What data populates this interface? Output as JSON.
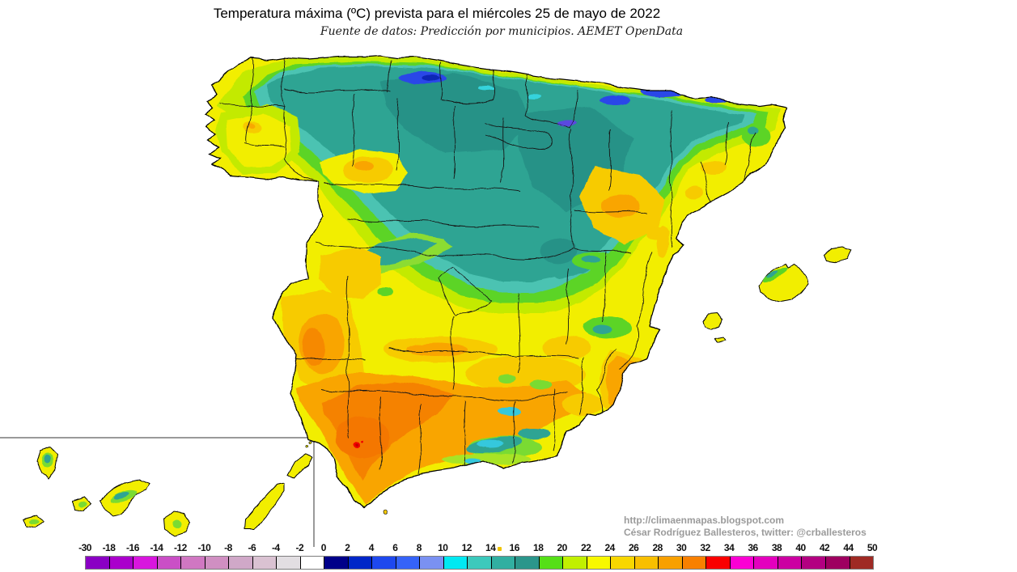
{
  "title": "Temperatura máxima (ºC) prevista para el miércoles 25 de mayo de 2022",
  "subtitle": "Fuente de datos: Predicción por municipios. AEMET OpenData",
  "attribution": {
    "line1": "http://climaenmapas.blogspot.com",
    "line2": "César Rodríguez Ballesteros, twitter: @crballesteros"
  },
  "colorbar": {
    "units": "ºC",
    "tick_labels": [
      "-30",
      "-18",
      "-16",
      "-14",
      "-12",
      "-10",
      "-8",
      "-6",
      "-4",
      "-2",
      "0",
      "2",
      "4",
      "6",
      "8",
      "10",
      "12",
      "14",
      "16",
      "18",
      "20",
      "22",
      "24",
      "26",
      "28",
      "30",
      "32",
      "34",
      "36",
      "38",
      "40",
      "42",
      "44",
      "50"
    ],
    "cell_colors": [
      "#8A00C4",
      "#AA00CC",
      "#D816DE",
      "#CA4FC6",
      "#D077C2",
      "#D08FC2",
      "#D0A8C8",
      "#DAC2D2",
      "#E2DEE2",
      "#FFFFFF",
      "#000089",
      "#0026C8",
      "#1E48EE",
      "#3563F8",
      "#7A91F2",
      "#00E9F2",
      "#3CC9BC",
      "#31AFA1",
      "#2B968B",
      "#55DF17",
      "#C1F000",
      "#F8F800",
      "#F8D700",
      "#F8BF00",
      "#F8A000",
      "#F88000",
      "#FA0000",
      "#FB00D4",
      "#E400BE",
      "#CC00A2",
      "#B30081",
      "#9E0060",
      "#9F2A24"
    ],
    "border_color": "#7d7d7d",
    "divider_color": "#000000",
    "marker_dot_color": "#F0C400"
  },
  "map": {
    "sea_color": "#FFFFFF",
    "coast_color": "#000000",
    "inset_line_color": "#9a9a9a",
    "hotspot_color": "#F10000",
    "key_fill_colors": {
      "cold_mountain_blue": "#2946E8",
      "north_teal": "#2FA493",
      "transition_green": "#5CD428",
      "base_yellow": "#F2EE00",
      "warm_golden": "#F7CB00",
      "south_orange": "#F9A500",
      "valley_deep_orange": "#F58200"
    }
  }
}
